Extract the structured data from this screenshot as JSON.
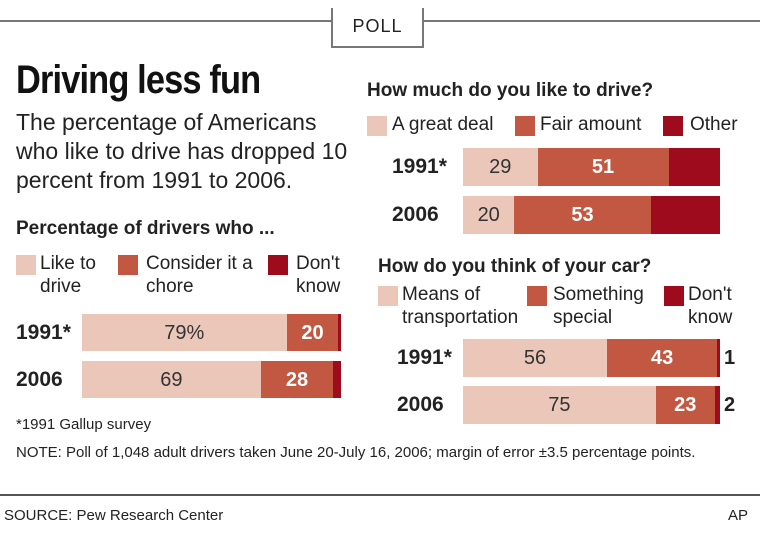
{
  "header": {
    "tag": "POLL"
  },
  "title": "Driving less fun",
  "subtitle": "The percentage of Americans who like to drive has dropped 10 percent from 1991 to 2006.",
  "colors": {
    "light": "#ebc7b9",
    "medium": "#c35842",
    "dark": "#9e0b1c"
  },
  "chart_data": [
    {
      "type": "bar",
      "title": "Percentage of drivers who ...",
      "legend": [
        "Like to drive",
        "Consider it a chore",
        "Don't know"
      ],
      "categories": [
        "1991*",
        "2006"
      ],
      "series": [
        {
          "name": "Like to drive",
          "values": [
            79,
            69
          ],
          "labels": [
            "79%",
            "69"
          ]
        },
        {
          "name": "Consider it a chore",
          "values": [
            20,
            28
          ],
          "labels": [
            "20",
            "28"
          ]
        },
        {
          "name": "Don't know",
          "values": [
            1,
            3
          ],
          "labels": [
            "",
            ""
          ]
        }
      ],
      "stacked": true
    },
    {
      "type": "bar",
      "title": "How much do you like to drive?",
      "legend": [
        "A great deal",
        "Fair amount",
        "Other"
      ],
      "categories": [
        "1991*",
        "2006"
      ],
      "series": [
        {
          "name": "A great deal",
          "values": [
            29,
            20
          ],
          "labels": [
            "29",
            "20"
          ]
        },
        {
          "name": "Fair amount",
          "values": [
            51,
            53
          ],
          "labels": [
            "51",
            "53"
          ]
        },
        {
          "name": "Other",
          "values": [
            20,
            27
          ],
          "labels": [
            "",
            ""
          ]
        }
      ],
      "stacked": true
    },
    {
      "type": "bar",
      "title": "How do you think of your car?",
      "legend": [
        "Means of transportation",
        "Something special",
        "Don't know"
      ],
      "categories": [
        "1991*",
        "2006"
      ],
      "series": [
        {
          "name": "Means of transportation",
          "values": [
            56,
            75
          ],
          "labels": [
            "56",
            "75"
          ]
        },
        {
          "name": "Something special",
          "values": [
            43,
            23
          ],
          "labels": [
            "43",
            "23"
          ]
        },
        {
          "name": "Don't know",
          "values": [
            1,
            2
          ],
          "labels": [
            "1",
            "2"
          ]
        }
      ],
      "stacked": true
    }
  ],
  "footnote": "*1991 Gallup survey",
  "note": "NOTE: Poll of 1,048 adult drivers taken June 20-July 16, 2006; margin of error ±3.5 percentage points.",
  "source": "SOURCE: Pew Research Center",
  "credit": "AP"
}
